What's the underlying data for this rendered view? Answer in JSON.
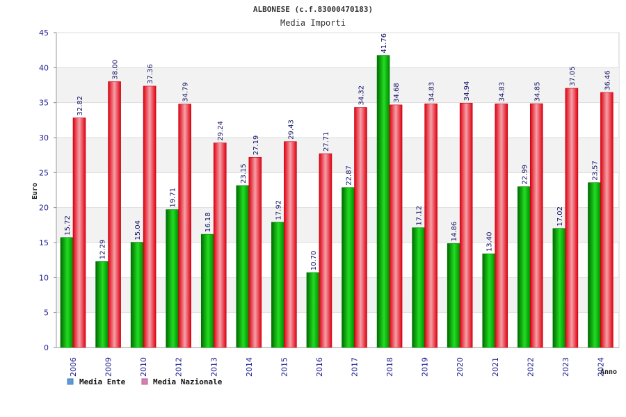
{
  "chart_data": {
    "type": "bar",
    "title": "ALBONESE (c.f.83000470183)",
    "subtitle": "Media Importi",
    "xlabel": "Anno",
    "ylabel": "Euro",
    "ylim": [
      0,
      45
    ],
    "yticks": [
      0,
      5,
      10,
      15,
      20,
      25,
      30,
      35,
      40,
      45
    ],
    "grid": true,
    "legend_position": "bottom-left",
    "categories": [
      "2006",
      "2009",
      "2010",
      "2012",
      "2013",
      "2014",
      "2015",
      "2016",
      "2017",
      "2018",
      "2019",
      "2020",
      "2021",
      "2022",
      "2023",
      "2024"
    ],
    "series": [
      {
        "name": "Media Ente",
        "color": "#00b000",
        "legend_color": "#5b9bd5",
        "values": [
          15.72,
          12.29,
          15.04,
          19.71,
          16.18,
          23.15,
          17.92,
          10.7,
          22.87,
          41.76,
          17.12,
          14.86,
          13.4,
          22.99,
          17.02,
          23.57
        ],
        "labels": [
          "15.72",
          "12.29",
          "15.04",
          "19.71",
          "16.18",
          "23.15",
          "17.92",
          "10.70",
          "22.87",
          "41.76",
          "17.12",
          "14.86",
          "13.40",
          "22.99",
          "17.02",
          "23.57"
        ]
      },
      {
        "name": "Media Nazionale",
        "color": "#e01020",
        "legend_color": "#d77fb0",
        "values": [
          32.82,
          38.0,
          37.36,
          34.79,
          29.24,
          27.19,
          29.43,
          27.71,
          34.32,
          34.68,
          34.83,
          34.94,
          34.83,
          34.85,
          37.05,
          36.46
        ],
        "labels": [
          "32.82",
          "38.00",
          "37.36",
          "34.79",
          "29.24",
          "27.19",
          "29.43",
          "27.71",
          "34.32",
          "34.68",
          "34.83",
          "34.94",
          "34.83",
          "34.85",
          "37.05",
          "36.46"
        ]
      }
    ]
  }
}
